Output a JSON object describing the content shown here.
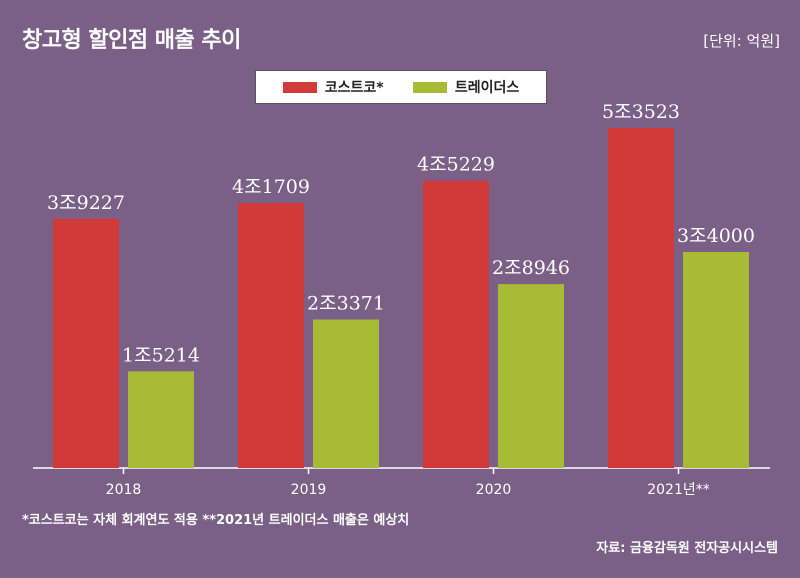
{
  "title": "창고형 할인점 매출 추이",
  "unit": "[단위: 억원]",
  "legend": [
    {
      "name": "코스트코*",
      "color": "#d23a3a"
    },
    {
      "name": "트레이더스",
      "color": "#a8bb34"
    }
  ],
  "notes": "*코스트코는 자체 회계연도 적용   **2021년 트레이더스 매출은 예상치",
  "source": "자료: 금융감독원 전자공시시스템",
  "chart_data": {
    "type": "bar",
    "categories": [
      "2018",
      "2019",
      "2020",
      "2021년**"
    ],
    "series": [
      {
        "name": "코스트코*",
        "values": [
          39227,
          41709,
          45229,
          53523
        ],
        "labels": [
          "3조9227",
          "4조1709",
          "4조5229",
          "5조3523"
        ],
        "color": "#d23a3a"
      },
      {
        "name": "트레이더스",
        "values": [
          15214,
          23371,
          28946,
          34000
        ],
        "labels": [
          "1조5214",
          "2조3371",
          "2조8946",
          "3조4000"
        ],
        "color": "#a8bb34"
      }
    ],
    "ylim": [
      0,
      60000
    ],
    "grid": false,
    "legend_position": "top-center"
  }
}
